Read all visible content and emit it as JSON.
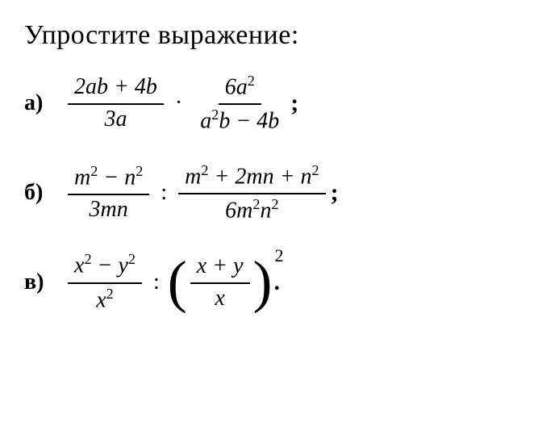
{
  "title": "Упростите выражение:",
  "fontsize_title": 34,
  "fontsize_body": 28,
  "text_color": "#000000",
  "background_color": "#ffffff",
  "problems": {
    "a": {
      "label": "а)",
      "frac1_num": "2ab + 4b",
      "frac1_den": "3a",
      "op1": "·",
      "frac2_num": "6a²",
      "frac2_den": "a²b − 4b",
      "punct": ";"
    },
    "b": {
      "label": "б)",
      "frac1_num": "m² − n²",
      "frac1_den": "3mn",
      "op1": ":",
      "frac2_num": "m² + 2mn + n²",
      "frac2_den": "6m²n²",
      "punct": ";"
    },
    "v": {
      "label": "в)",
      "frac1_num": "x² − y²",
      "frac1_den": "x²",
      "op1": ":",
      "lparen": "(",
      "frac2_num": "x + y",
      "frac2_den": "x",
      "rparen": ")",
      "outer_exp": "2",
      "punct": "."
    }
  }
}
